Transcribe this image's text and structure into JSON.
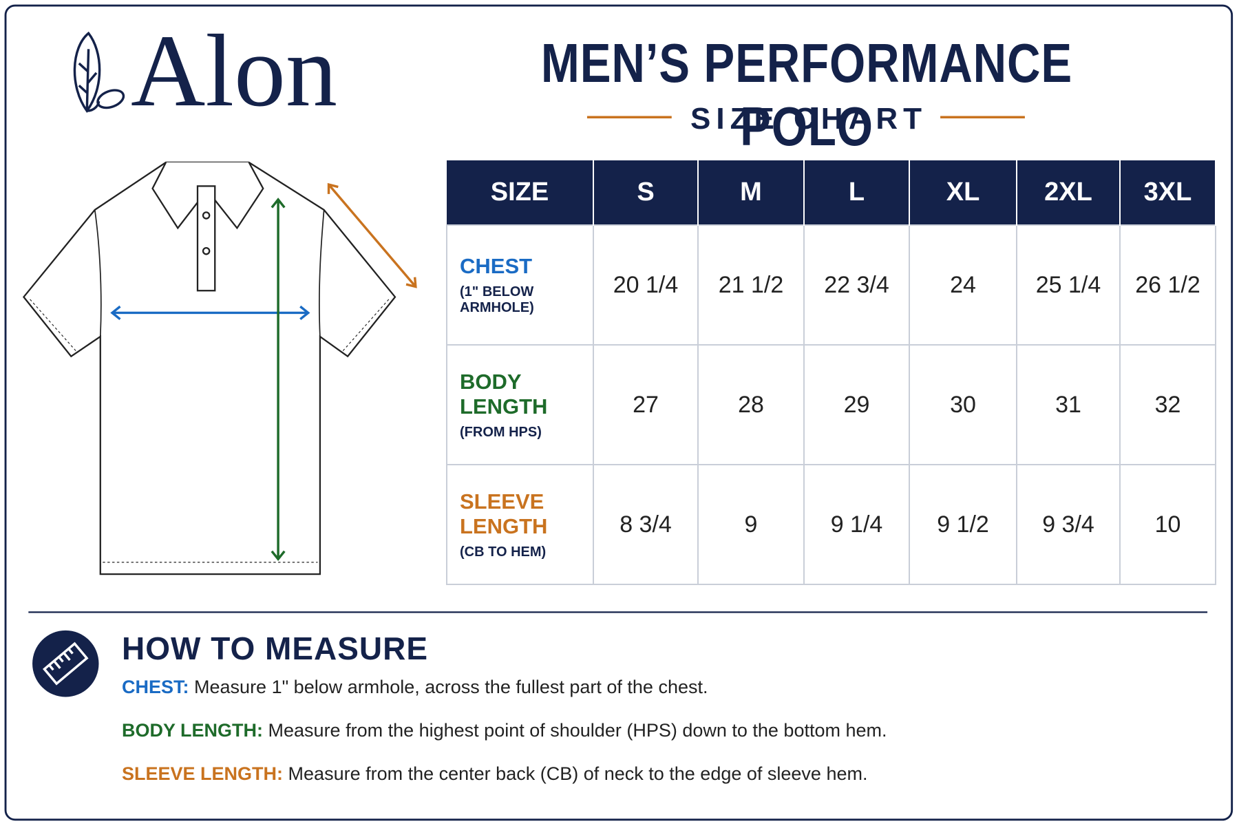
{
  "brand": "Alon",
  "header": {
    "title": "MEN’S PERFORMANCE POLO",
    "subtitle": "SIZE CHART"
  },
  "table": {
    "columns": [
      "SIZE",
      "S",
      "M",
      "L",
      "XL",
      "2XL",
      "3XL"
    ],
    "rows": [
      {
        "label": "CHEST",
        "sublabel": "(1\" BELOW ARMHOLE)",
        "values": [
          "20 1/4",
          "21 1/2",
          "22 3/4",
          "24",
          "25 1/4",
          "26 1/2"
        ]
      },
      {
        "label": "BODY LENGTH",
        "sublabel": "(FROM HPS)",
        "values": [
          "27",
          "28",
          "29",
          "30",
          "31",
          "32"
        ]
      },
      {
        "label": "SLEEVE LENGTH",
        "sublabel": "(CB TO HEM)",
        "values": [
          "8 3/4",
          "9",
          "9 1/4",
          "9 1/2",
          "9 3/4",
          "10"
        ]
      }
    ]
  },
  "how_to_measure": {
    "title": "HOW TO MEASURE",
    "items": [
      {
        "label": "CHEST:",
        "text": "Measure 1\" below armhole, across the fullest part of the chest."
      },
      {
        "label": "BODY LENGTH:",
        "text": "Measure from the highest point of shoulder (HPS) down to the bottom hem."
      },
      {
        "label": "SLEEVE LENGTH:",
        "text": "Measure from the center back (CB) of neck to the edge of sleeve hem."
      }
    ]
  }
}
